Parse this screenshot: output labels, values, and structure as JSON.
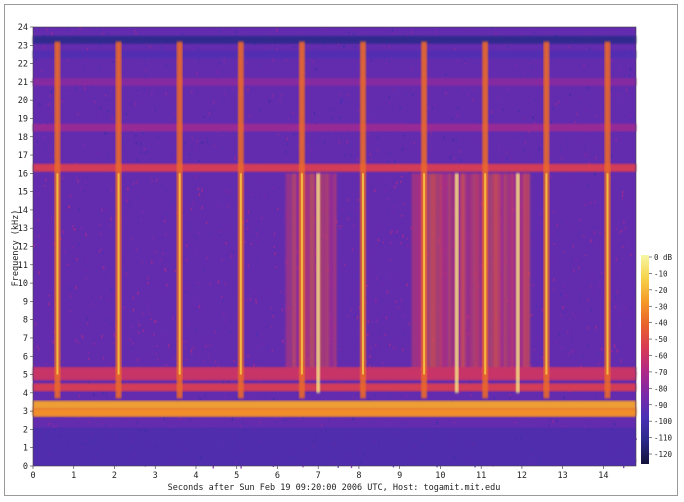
{
  "chart_data": {
    "type": "heatmap",
    "subtype": "spectrogram",
    "xlabel": "Seconds after Sun Feb 19 09:20:00 2006 UTC, Host: togamit.mit.edu",
    "ylabel": "Frequency (kHz)",
    "xlim": [
      0,
      14.8
    ],
    "ylim": [
      0,
      24
    ],
    "x_ticks": [
      "0",
      "1",
      "2",
      "3",
      "4",
      "5",
      "6",
      "7",
      "8",
      "9",
      "10",
      "11",
      "12",
      "13",
      "14"
    ],
    "y_ticks": [
      "0",
      "1",
      "2",
      "3",
      "4",
      "5",
      "6",
      "7",
      "8",
      "9",
      "10",
      "11",
      "12",
      "13",
      "14",
      "15",
      "16",
      "17",
      "18",
      "19",
      "20",
      "21",
      "22",
      "23",
      "24"
    ],
    "colorbar": {
      "unit_label": "dB",
      "range": [
        -125,
        0
      ],
      "ticks": [
        "0 dB",
        "-10",
        "-20",
        "-30",
        "-40",
        "-50",
        "-60",
        "-70",
        "-80",
        "-90",
        "-100",
        "-110",
        "-120"
      ],
      "colors": [
        "#f7f7a6",
        "#f6d24a",
        "#f59a28",
        "#e8622c",
        "#d93a55",
        "#b02a86",
        "#7a2aa8",
        "#4a2fb4",
        "#2a2a8a",
        "#121238"
      ]
    },
    "background_level_db": -90,
    "horizontal_bands": [
      {
        "freq_khz": 3.0,
        "level_db": -40
      },
      {
        "freq_khz": 3.35,
        "level_db": -25
      },
      {
        "freq_khz": 2.9,
        "level_db": -30
      },
      {
        "freq_khz": 4.3,
        "level_db": -55
      },
      {
        "freq_khz": 4.9,
        "level_db": -60
      },
      {
        "freq_khz": 5.2,
        "level_db": -60
      },
      {
        "freq_khz": 16.3,
        "level_db": -55
      },
      {
        "freq_khz": 18.5,
        "level_db": -75
      },
      {
        "freq_khz": 21.0,
        "level_db": -80
      },
      {
        "freq_khz": 22.5,
        "level_db": -95
      },
      {
        "freq_khz": 23.3,
        "level_db": -110
      }
    ],
    "sferics_seconds": [
      0.6,
      2.1,
      3.6,
      5.1,
      6.6,
      8.1,
      9.6,
      11.1,
      12.6,
      14.1
    ],
    "sferics_level_db": -40,
    "tweeks_seconds": [
      7.0,
      11.9,
      10.4
    ],
    "diffuse_emission_ranges": [
      [
        6.2,
        7.4
      ],
      [
        9.3,
        12.2
      ]
    ]
  }
}
